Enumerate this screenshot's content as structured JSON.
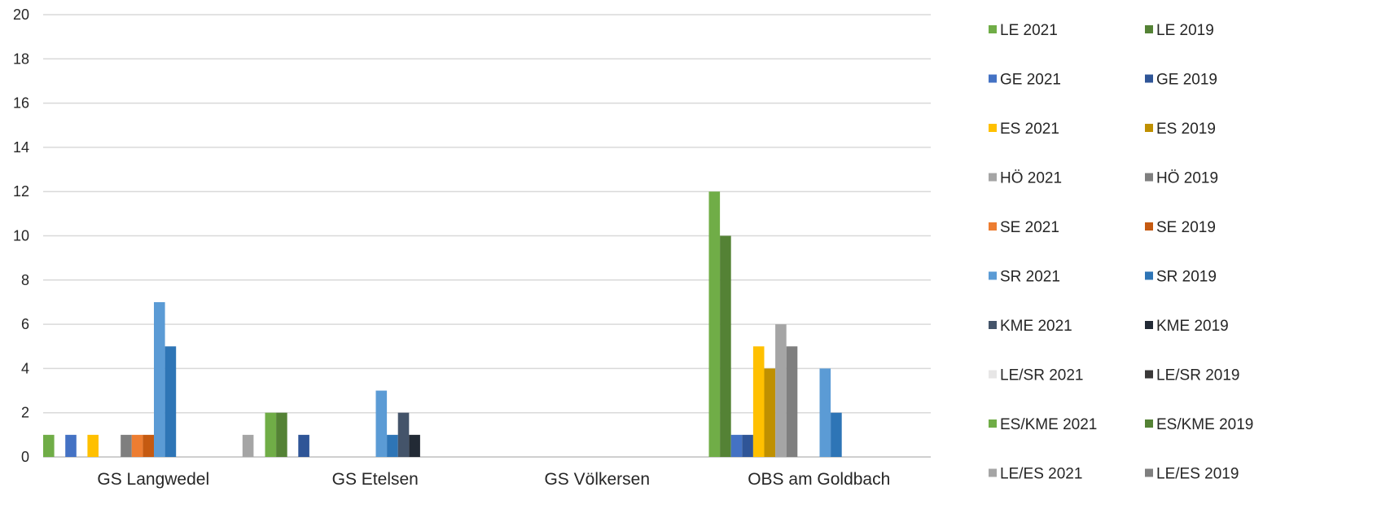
{
  "chart_data": {
    "type": "bar",
    "categories": [
      "GS Langwedel",
      "GS Etelsen",
      "GS Völkersen",
      "OBS am Goldbach"
    ],
    "ylim": [
      0,
      20
    ],
    "yticks": [
      0,
      2,
      4,
      6,
      8,
      10,
      12,
      14,
      16,
      18,
      20
    ],
    "grid": true,
    "legend_position": "right",
    "series": [
      {
        "name": "LE 2021",
        "color": "#70ad47",
        "values": [
          1,
          2,
          0,
          12
        ]
      },
      {
        "name": "LE 2019",
        "color": "#548235",
        "values": [
          0,
          2,
          0,
          10
        ]
      },
      {
        "name": "GE 2021",
        "color": "#4472c4",
        "values": [
          1,
          0,
          0,
          1
        ]
      },
      {
        "name": "GE 2019",
        "color": "#2f5597",
        "values": [
          0,
          1,
          0,
          1
        ]
      },
      {
        "name": "ES 2021",
        "color": "#ffc000",
        "values": [
          1,
          0,
          0,
          5
        ]
      },
      {
        "name": "ES 2019",
        "color": "#bf9000",
        "values": [
          0,
          0,
          0,
          4
        ]
      },
      {
        "name": "HÖ 2021",
        "color": "#a5a5a5",
        "values": [
          0,
          0,
          0,
          6
        ]
      },
      {
        "name": "HÖ 2019",
        "color": "#7f7f7f",
        "values": [
          1,
          0,
          0,
          5
        ]
      },
      {
        "name": "SE 2021",
        "color": "#ed7d31",
        "values": [
          1,
          0,
          0,
          0
        ]
      },
      {
        "name": "SE 2019",
        "color": "#c55a11",
        "values": [
          1,
          0,
          0,
          0
        ]
      },
      {
        "name": "SR 2021",
        "color": "#5b9bd5",
        "values": [
          7,
          3,
          0,
          4
        ]
      },
      {
        "name": "SR 2019",
        "color": "#2e75b6",
        "values": [
          5,
          1,
          0,
          2
        ]
      },
      {
        "name": "KME 2021",
        "color": "#44546a",
        "values": [
          0,
          2,
          0,
          0
        ]
      },
      {
        "name": "KME 2019",
        "color": "#222a35",
        "values": [
          0,
          1,
          0,
          0
        ]
      },
      {
        "name": "LE/SR 2021",
        "color": "#e7e6e6",
        "values": [
          0,
          0,
          0,
          0
        ]
      },
      {
        "name": "LE/SR 2019",
        "color": "#3a3838",
        "values": [
          0,
          0,
          0,
          0
        ]
      },
      {
        "name": "ES/KME 2021",
        "color": "#70ad47",
        "values": [
          0,
          0,
          0,
          0
        ]
      },
      {
        "name": "ES/KME 2019",
        "color": "#548235",
        "values": [
          0,
          0,
          0,
          0
        ]
      },
      {
        "name": "LE/ES 2021",
        "color": "#a5a5a5",
        "values": [
          1,
          0,
          0,
          0
        ]
      },
      {
        "name": "LE/ES 2019",
        "color": "#7f7f7f",
        "values": [
          0,
          0,
          0,
          0
        ]
      }
    ]
  }
}
